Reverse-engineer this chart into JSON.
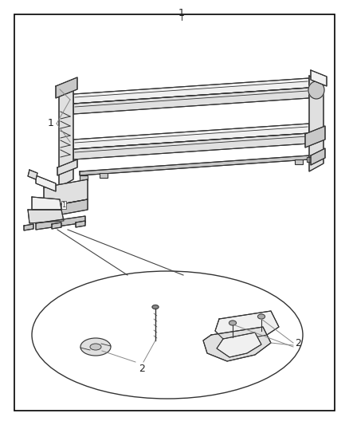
{
  "bg_color": "#ffffff",
  "line_color": "#333333",
  "fig_width": 4.38,
  "fig_height": 5.33,
  "dpi": 100,
  "border_lw": 1.2,
  "part_lw": 0.8,
  "label_fontsize": 9
}
